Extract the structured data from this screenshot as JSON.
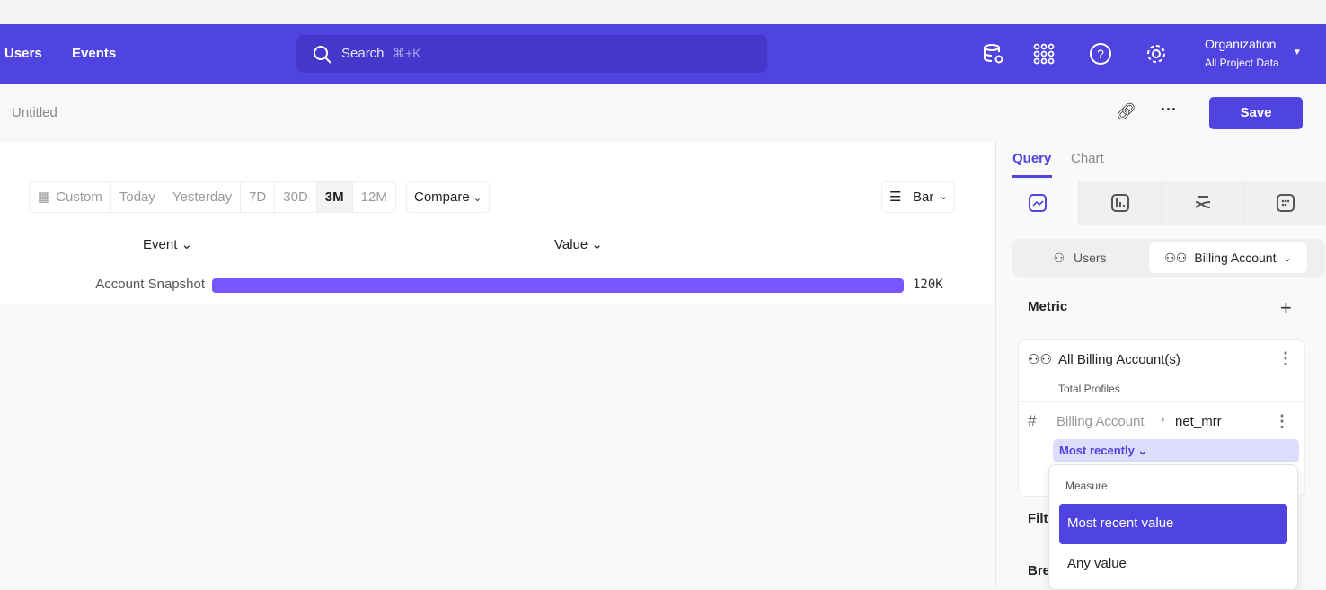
{
  "nav": {
    "links": [
      "Users",
      "Events"
    ],
    "search_label": "Search",
    "search_shortcut": "⌘+K",
    "org_name": "Organization",
    "org_scope": "All Project Data",
    "accent": "#4f44e0"
  },
  "subheader": {
    "title": "Untitled",
    "save_label": "Save"
  },
  "toolbar": {
    "date_ranges": [
      "Custom",
      "Today",
      "Yesterday",
      "7D",
      "30D",
      "3M",
      "12M"
    ],
    "selected_range": "3M",
    "compare_label": "Compare",
    "chart_type_label": "Bar"
  },
  "table": {
    "col_event": "Event",
    "col_value": "Value"
  },
  "chart_data": {
    "type": "bar",
    "orientation": "horizontal",
    "categories": [
      "Account Snapshot"
    ],
    "values": [
      120000
    ],
    "value_labels": [
      "120K"
    ],
    "bar_color": "#7856ff"
  },
  "panel": {
    "tabs": [
      "Query",
      "Chart"
    ],
    "active_tab": "Query",
    "entity_users": "Users",
    "entity_selected": "Billing Account",
    "metric_label": "Metric",
    "metric_title": "All Billing Account(s)",
    "metric_sub": "Total Profiles",
    "property_parent": "Billing Account",
    "property_name": "net_mrr",
    "aggregation": "Most recently",
    "filters_label": "Filt",
    "breakdown_label": "Bre"
  },
  "dropdown": {
    "header": "Measure",
    "options": [
      "Most recent value",
      "Any value"
    ],
    "selected": "Most recent value"
  }
}
